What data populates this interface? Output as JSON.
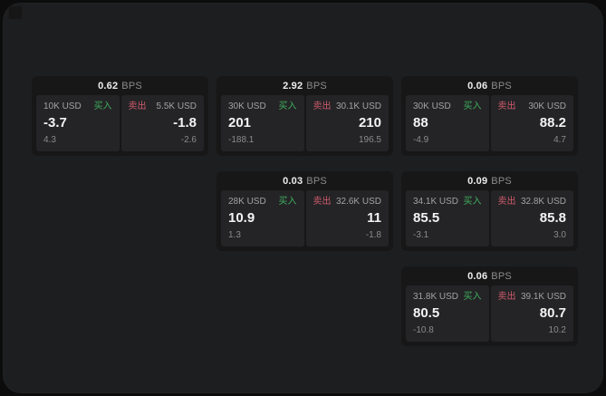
{
  "page": {
    "bps_unit": "BPS",
    "buy_label": "买入",
    "sell_label": "卖出"
  },
  "colors": {
    "buy_green": "#3fae5f",
    "sell_red": "#cf5a6c",
    "surface": "#1d1e1f",
    "card": "#171718",
    "panel": "#242426",
    "value_text": "#f3f3f3",
    "muted_text": "#8a8a8a"
  },
  "cards": [
    {
      "row": 1,
      "col": 1,
      "bps": "0.62",
      "buy": {
        "amount": "10K USD",
        "value": "-3.7",
        "sub": "4.3"
      },
      "sell": {
        "amount": "5.5K USD",
        "value": "-1.8",
        "sub": "-2.6"
      }
    },
    {
      "row": 1,
      "col": 2,
      "bps": "2.92",
      "buy": {
        "amount": "30K USD",
        "value": "201",
        "sub": "-188.1"
      },
      "sell": {
        "amount": "30.1K USD",
        "value": "210",
        "sub": "196.5"
      }
    },
    {
      "row": 1,
      "col": 3,
      "bps": "0.06",
      "buy": {
        "amount": "30K USD",
        "value": "88",
        "sub": "-4.9"
      },
      "sell": {
        "amount": "30K USD",
        "value": "88.2",
        "sub": "4.7"
      }
    },
    {
      "row": 2,
      "col": 2,
      "bps": "0.03",
      "buy": {
        "amount": "28K USD",
        "value": "10.9",
        "sub": "1.3"
      },
      "sell": {
        "amount": "32.6K USD",
        "value": "11",
        "sub": "-1.8"
      }
    },
    {
      "row": 2,
      "col": 3,
      "bps": "0.09",
      "buy": {
        "amount": "34.1K USD",
        "value": "85.5",
        "sub": "-3.1"
      },
      "sell": {
        "amount": "32.8K USD",
        "value": "85.8",
        "sub": "3.0"
      }
    },
    {
      "row": 3,
      "col": 3,
      "bps": "0.06",
      "buy": {
        "amount": "31.8K USD",
        "value": "80.5",
        "sub": "-10.8"
      },
      "sell": {
        "amount": "39.1K USD",
        "value": "80.7",
        "sub": "10.2"
      }
    }
  ]
}
